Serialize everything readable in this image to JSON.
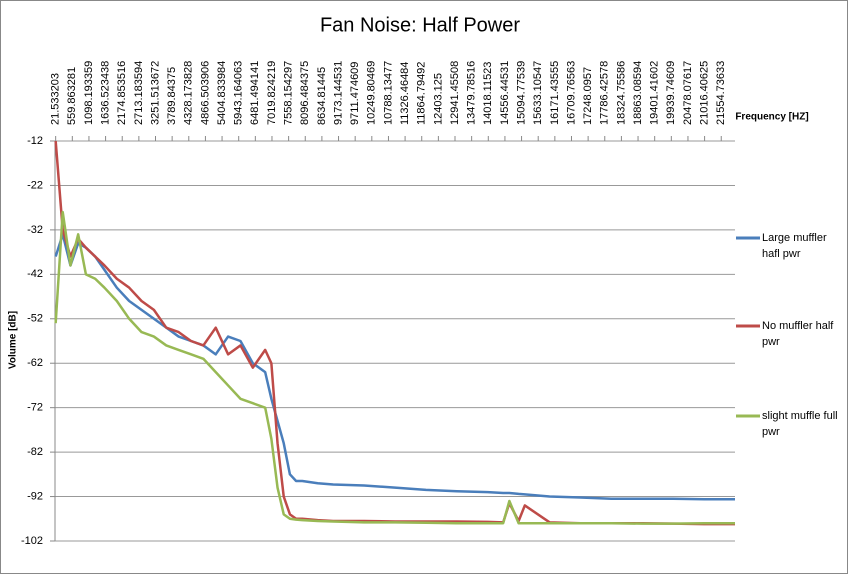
{
  "chart_data": {
    "type": "line",
    "title": "Fan Noise: Half Power",
    "x_label": "Frequency [HZ]",
    "y_label": "Volume [dB]",
    "x": [
      21.533203,
      250,
      500,
      750,
      1000,
      1300,
      1600,
      2000,
      2400,
      2800,
      3200,
      3600,
      4000,
      4400,
      4800,
      5200,
      5600,
      6000,
      6400,
      6800,
      7000,
      7200,
      7400,
      7600,
      7800,
      8000,
      8500,
      9000,
      10000,
      11000,
      12000,
      13000,
      14000,
      14500,
      14700,
      15000,
      15200,
      16000,
      17000,
      18000,
      19000,
      20000,
      21000,
      22000
    ],
    "series": [
      {
        "name": "Large muffler hafl pwr",
        "color": "#4a7ebb",
        "values": [
          -38,
          -33,
          -40,
          -35,
          -36,
          -38,
          -41,
          -45,
          -48,
          -50,
          -52,
          -54,
          -56,
          -57,
          -58,
          -60,
          -56,
          -57,
          -62,
          -64,
          -70,
          -75,
          -80,
          -87,
          -88.5,
          -88.5,
          -89,
          -89.3,
          -89.5,
          -90,
          -90.5,
          -90.8,
          -91,
          -91.2,
          -91.2,
          -91.4,
          -91.5,
          -92,
          -92.2,
          -92.5,
          -92.5,
          -92.5,
          -92.6,
          -92.6
        ]
      },
      {
        "name": "No muffler half pwr",
        "color": "#be4b48",
        "values": [
          -12,
          -32,
          -38,
          -34,
          -36,
          -38,
          -40,
          -43,
          -45,
          -48,
          -50,
          -54,
          -55,
          -57,
          -58,
          -54,
          -60,
          -58,
          -63,
          -59,
          -62,
          -80,
          -92,
          -96,
          -97,
          -97,
          -97.3,
          -97.5,
          -97.5,
          -97.6,
          -97.6,
          -97.6,
          -97.7,
          -97.8,
          -93.5,
          -97.5,
          -94,
          -97.8,
          -98,
          -98,
          -98,
          -98.1,
          -98.2,
          -98.2
        ]
      },
      {
        "name": "slight muffle full pwr",
        "color": "#98b954",
        "values": [
          -53,
          -28,
          -40,
          -33,
          -42,
          -43,
          -45,
          -48,
          -52,
          -55,
          -56,
          -58,
          -59,
          -60,
          -61,
          -64,
          -67,
          -70,
          -71,
          -72,
          -79,
          -90,
          -96,
          -97,
          -97.2,
          -97.3,
          -97.5,
          -97.6,
          -97.8,
          -97.8,
          -97.9,
          -98,
          -98,
          -98,
          -93,
          -98,
          -98,
          -98,
          -98,
          -98,
          -98.1,
          -98.1,
          -98,
          -98
        ]
      }
    ],
    "xlim": [
      0,
      22000
    ],
    "xticks": [
      21.533203,
      559.863281,
      1098.193359,
      1636.523438,
      2174.853516,
      2713.183594,
      3251.513672,
      3789.84375,
      4328.173828,
      4866.503906,
      5404.833984,
      5943.164063,
      6481.494141,
      7019.824219,
      7558.154297,
      8096.484375,
      8634.81445,
      9173.144531,
      9711.474609,
      10249.80469,
      10788.13477,
      11326.46484,
      11864.79492,
      12403.125,
      12941.45508,
      13479.78516,
      14018.11523,
      14556.44531,
      15094.77539,
      15633.10547,
      16171.43555,
      16709.76563,
      17248.0957,
      17786.42578,
      18324.75586,
      18863.08594,
      19401.41602,
      19939.74609,
      20478.07617,
      21016.40625,
      21554.73633
    ],
    "ylim": [
      -102,
      -12
    ],
    "yticks": [
      -12,
      -22,
      -32,
      -42,
      -52,
      -62,
      -72,
      -82,
      -92,
      -102
    ],
    "grid": true
  }
}
